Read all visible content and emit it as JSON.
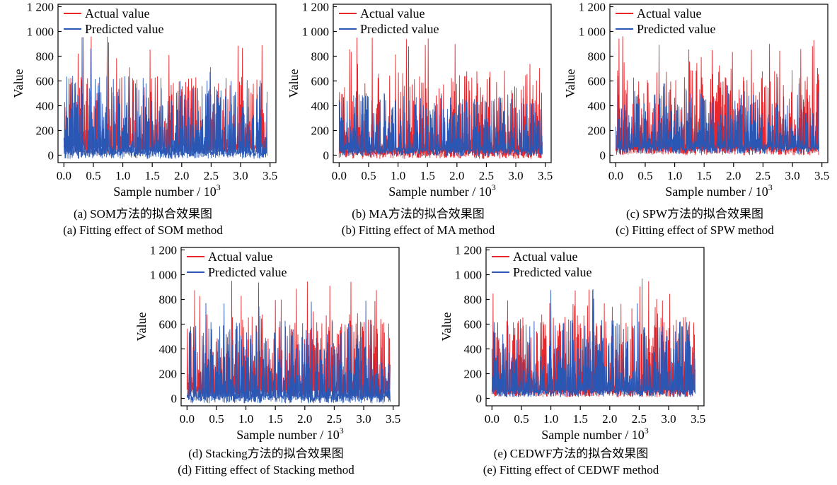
{
  "colors": {
    "actual": "#e8262b",
    "predicted": "#2b57b4",
    "axis": "#000000"
  },
  "legend": {
    "actual": "Actual value",
    "predicted": "Predicted value"
  },
  "axes": {
    "xlabel": "Sample number / 10",
    "xlabel_sup": "3",
    "ylabel": "Value",
    "xticks": [
      0.0,
      0.5,
      1.0,
      1.5,
      2.0,
      2.5,
      3.0,
      3.5
    ],
    "xtick_labels": [
      "0.0",
      "0.5",
      "1.0",
      "1.5",
      "2.0",
      "2.5",
      "3.0",
      "3.5"
    ],
    "yticks": [
      0,
      200,
      400,
      600,
      800,
      1000,
      1200
    ],
    "ytick_labels": [
      "0",
      "200",
      "400",
      "600",
      "800",
      "1 000",
      "1 200"
    ]
  },
  "chart_data": [
    {
      "type": "line",
      "x_range": [
        0,
        3.45
      ],
      "xlim": [
        -0.1,
        3.6
      ],
      "ylim": [
        -60,
        1220
      ],
      "caption_cn": "(a) SOM方法的拟合效果图",
      "caption_en": "(a) Fitting effect of SOM method",
      "series": [
        {
          "name": "Actual value",
          "peak": 960,
          "base": 20,
          "typical_high": 600
        },
        {
          "name": "Predicted value",
          "peak": 960,
          "base": -30,
          "typical_high": 600
        }
      ]
    },
    {
      "type": "line",
      "x_range": [
        0,
        3.45
      ],
      "xlim": [
        -0.1,
        3.6
      ],
      "ylim": [
        -60,
        1220
      ],
      "caption_cn": "(b) MA方法的拟合效果图",
      "caption_en": "(b) Fitting effect of MA method",
      "series": [
        {
          "name": "Actual value",
          "peak": 970,
          "base": -30,
          "typical_high": 650
        },
        {
          "name": "Predicted value",
          "peak": 650,
          "base": -10,
          "typical_high": 450
        }
      ]
    },
    {
      "type": "line",
      "x_range": [
        0,
        3.45
      ],
      "xlim": [
        -0.1,
        3.6
      ],
      "ylim": [
        -60,
        1220
      ],
      "caption_cn": "(c) SPW方法的拟合效果图",
      "caption_en": "(c) Fitting effect of SPW method",
      "series": [
        {
          "name": "Actual value",
          "peak": 970,
          "base": 0,
          "typical_high": 650
        },
        {
          "name": "Predicted value",
          "peak": 650,
          "base": 10,
          "typical_high": 480
        }
      ]
    },
    {
      "type": "line",
      "x_range": [
        0,
        3.45
      ],
      "xlim": [
        -0.1,
        3.6
      ],
      "ylim": [
        -60,
        1220
      ],
      "caption_cn": "(d) Stacking方法的拟合效果图",
      "caption_en": "(d) Fitting effect of Stacking method",
      "series": [
        {
          "name": "Actual value",
          "peak": 970,
          "base": 10,
          "typical_high": 640
        },
        {
          "name": "Predicted value",
          "peak": 960,
          "base": -40,
          "typical_high": 600
        }
      ]
    },
    {
      "type": "line",
      "x_range": [
        0,
        3.45
      ],
      "xlim": [
        -0.1,
        3.6
      ],
      "ylim": [
        -60,
        1220
      ],
      "caption_cn": "(e) CEDWF方法的拟合效果图",
      "caption_en": "(e) Fitting effect of CEDWF method",
      "series": [
        {
          "name": "Actual value",
          "peak": 970,
          "base": 10,
          "typical_high": 640
        },
        {
          "name": "Predicted value",
          "peak": 940,
          "base": 10,
          "typical_high": 600
        }
      ]
    }
  ]
}
